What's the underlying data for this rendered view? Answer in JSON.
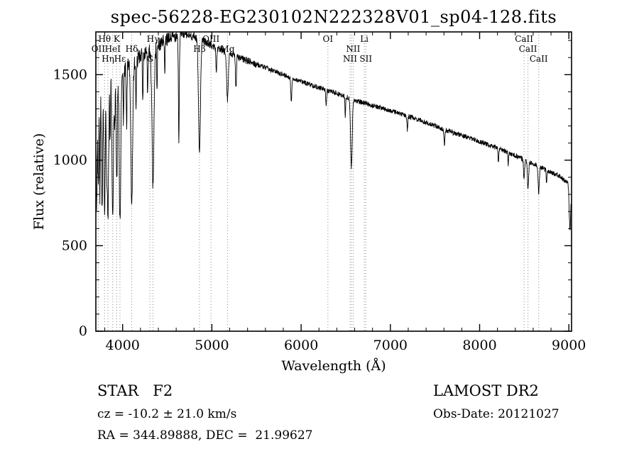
{
  "title": "spec-56228-EG230102N222328V01_sp04-128.fits",
  "chart_data": {
    "type": "line",
    "title": "spec-56228-EG230102N222328V01_sp04-128.fits",
    "xlabel": "Wavelength (Å)",
    "ylabel": "Flux (relative)",
    "xlim": [
      3700,
      9030
    ],
    "ylim": [
      0,
      1750
    ],
    "xticks": [
      4000,
      5000,
      6000,
      7000,
      8000,
      9000
    ],
    "yticks": [
      0,
      500,
      1000,
      1500
    ],
    "x_minor_step": 200,
    "y_minor_step": 100,
    "grid": false,
    "legend": "none",
    "line_color": "#000000",
    "continuum": [
      [
        3700,
        1310
      ],
      [
        3800,
        1430
      ],
      [
        3900,
        1500
      ],
      [
        4000,
        1525
      ],
      [
        4100,
        1560
      ],
      [
        4200,
        1610
      ],
      [
        4300,
        1640
      ],
      [
        4400,
        1680
      ],
      [
        4500,
        1705
      ],
      [
        4650,
        1740
      ],
      [
        4800,
        1720
      ],
      [
        4900,
        1700
      ],
      [
        5000,
        1670
      ],
      [
        5200,
        1620
      ],
      [
        5400,
        1580
      ],
      [
        5600,
        1540
      ],
      [
        5800,
        1500
      ],
      [
        6000,
        1460
      ],
      [
        6200,
        1425
      ],
      [
        6400,
        1390
      ],
      [
        6600,
        1350
      ],
      [
        6800,
        1320
      ],
      [
        7000,
        1290
      ],
      [
        7300,
        1240
      ],
      [
        7600,
        1180
      ],
      [
        8000,
        1110
      ],
      [
        8300,
        1050
      ],
      [
        8600,
        980
      ],
      [
        8900,
        905
      ],
      [
        9030,
        845
      ]
    ],
    "absorption_lines": [
      [
        3705,
        450,
        5
      ],
      [
        3712,
        350,
        4
      ],
      [
        3727,
        500,
        5
      ],
      [
        3745,
        560,
        4
      ],
      [
        3770,
        650,
        6
      ],
      [
        3798,
        760,
        7
      ],
      [
        3820,
        420,
        4
      ],
      [
        3835,
        800,
        8
      ],
      [
        3860,
        360,
        4
      ],
      [
        3889,
        830,
        8
      ],
      [
        3912,
        320,
        4
      ],
      [
        3934,
        620,
        7
      ],
      [
        3970,
        890,
        9
      ],
      [
        4010,
        320,
        4
      ],
      [
        4045,
        360,
        4
      ],
      [
        4102,
        830,
        10
      ],
      [
        4150,
        260,
        4
      ],
      [
        4226,
        300,
        4
      ],
      [
        4280,
        240,
        4
      ],
      [
        4340,
        810,
        11
      ],
      [
        4385,
        260,
        4
      ],
      [
        4472,
        210,
        4
      ],
      [
        4630,
        630,
        5
      ],
      [
        4861,
        650,
        11
      ],
      [
        5050,
        150,
        5
      ],
      [
        5175,
        270,
        9
      ],
      [
        5270,
        180,
        5
      ],
      [
        5890,
        140,
        6
      ],
      [
        6280,
        90,
        5
      ],
      [
        6495,
        110,
        4
      ],
      [
        6563,
        400,
        9
      ],
      [
        7190,
        85,
        5
      ],
      [
        7605,
        95,
        5
      ],
      [
        8210,
        75,
        5
      ],
      [
        8320,
        70,
        4
      ],
      [
        8498,
        115,
        6
      ],
      [
        8542,
        155,
        7
      ],
      [
        8662,
        155,
        7
      ],
      [
        8750,
        80,
        4
      ],
      [
        9012,
        260,
        8
      ]
    ],
    "noise": {
      "blue": 70,
      "mid": 22,
      "red": 14,
      "seed": 42
    },
    "spectral_features": [
      {
        "wl": 3727,
        "label": "OII",
        "row": 1
      },
      {
        "wl": 3798,
        "label": "Hθ",
        "row": 0
      },
      {
        "wl": 3835,
        "label": "Hη",
        "row": 2
      },
      {
        "wl": 3889,
        "label": "HeI",
        "row": 1
      },
      {
        "wl": 3934,
        "label": "K",
        "row": 0
      },
      {
        "wl": 3970,
        "label": "Hε",
        "row": 2
      },
      {
        "wl": 4102,
        "label": "Hδ",
        "row": 1
      },
      {
        "wl": 4305,
        "label": "G",
        "row": 2
      },
      {
        "wl": 4340,
        "label": "Hγ",
        "row": 0
      },
      {
        "wl": 4861,
        "label": "Hβ",
        "row": 1
      },
      {
        "wl": 4990,
        "label": "OIII",
        "row": 0
      },
      {
        "wl": 5175,
        "label": "Mg",
        "row": 1
      },
      {
        "wl": 6300,
        "label": "OI",
        "row": 0
      },
      {
        "wl": 6548,
        "label": "NII",
        "row": 2
      },
      {
        "wl": 6583,
        "label": "NII",
        "row": 1
      },
      {
        "wl": 6708,
        "label": "Li",
        "row": 0
      },
      {
        "wl": 6725,
        "label": "SII",
        "row": 2
      },
      {
        "wl": 8498,
        "label": "CaII",
        "row": 0
      },
      {
        "wl": 8542,
        "label": "CaII",
        "row": 1
      },
      {
        "wl": 8662,
        "label": "CaII",
        "row": 2
      }
    ],
    "extra_dotted_lines": [
      6563
    ]
  },
  "footer": {
    "class_label": "STAR   F2",
    "cz": "cz = -10.2 ± 21.0 km/s",
    "radec": "RA = 344.89888, DEC =  21.99627",
    "survey": "LAMOST DR2",
    "obs_date": "Obs-Date: 20121027"
  }
}
